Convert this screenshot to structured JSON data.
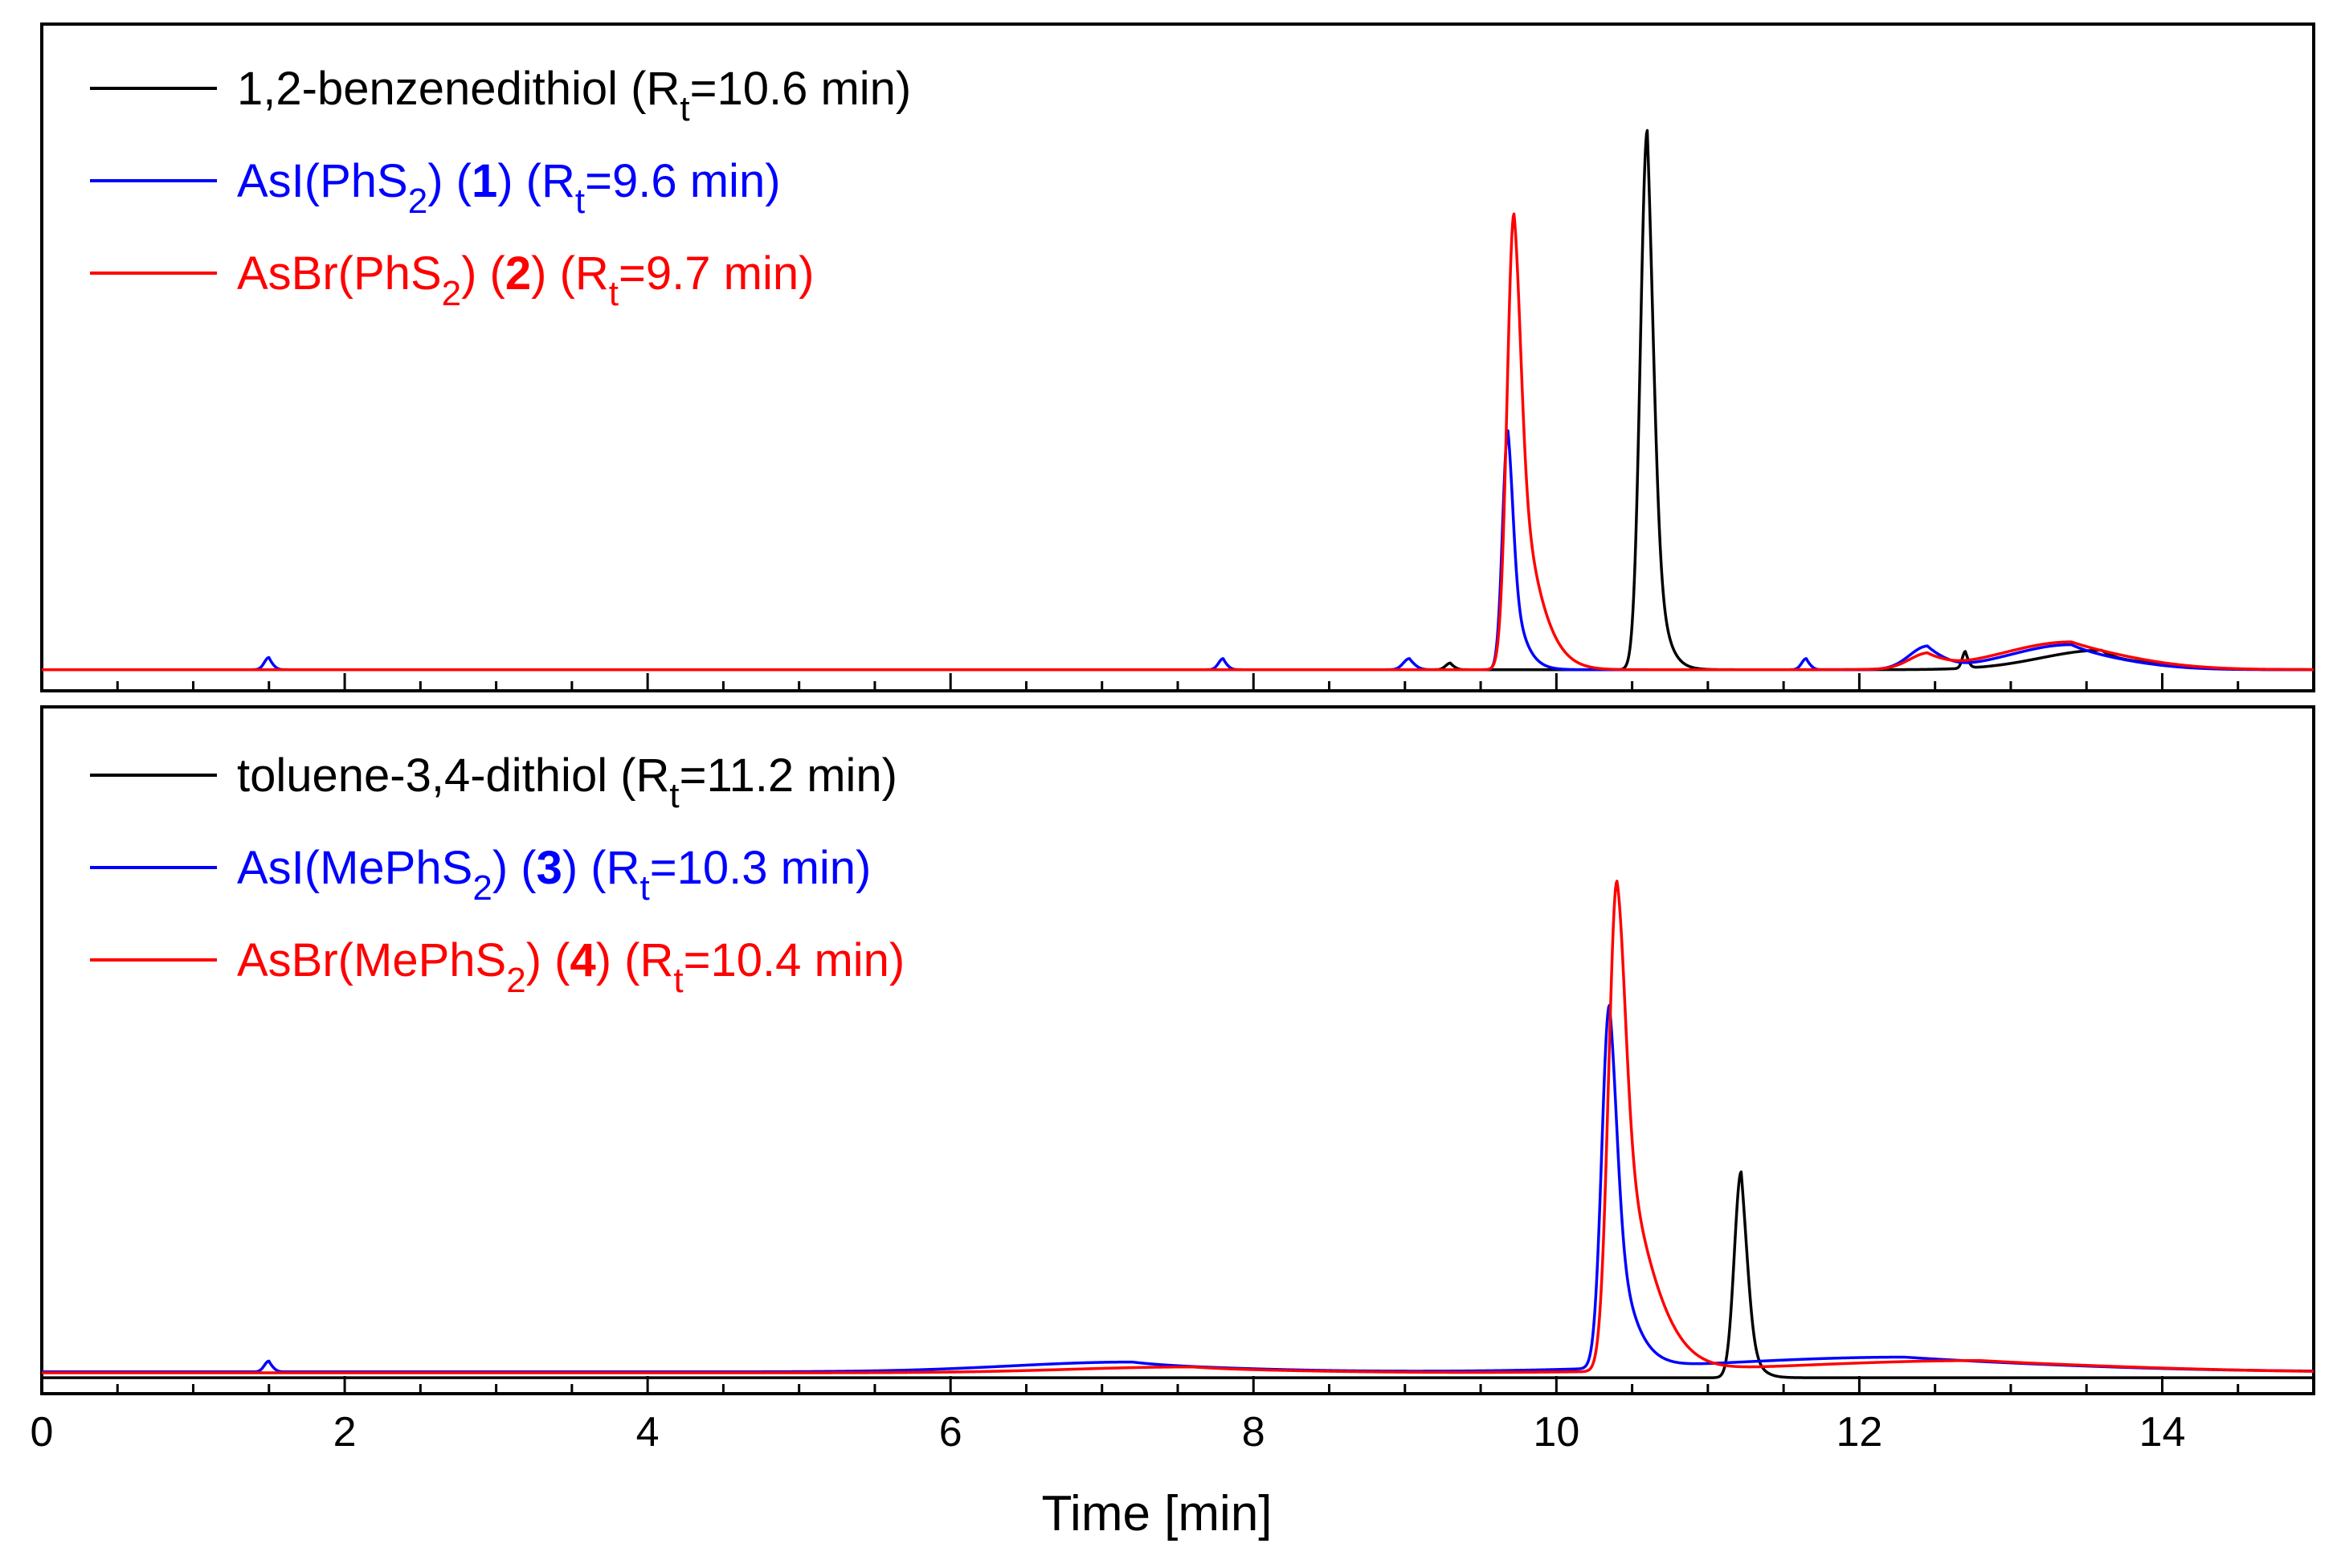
{
  "chart_data": {
    "type": "line",
    "description_axis": {
      "xlabel": "Time [min]",
      "xlim": [
        0,
        15
      ],
      "x_ticks": [
        0,
        2,
        4,
        6,
        8,
        10,
        12,
        14
      ],
      "x_minor_step": 0.5,
      "ylabel": ""
    },
    "colors": {
      "thiol": "#000000",
      "iodo": "#0000ff",
      "bromo": "#ff0000"
    },
    "panels": [
      {
        "id": "top",
        "legend": [
          {
            "color": "#000000",
            "pre": "1,2-benzenedithiol (R",
            "sub": "t",
            "post": "=10.6 min)"
          },
          {
            "color": "#0000ff",
            "pre": "AsI(PhS",
            "sub": "2",
            "mid": ") (",
            "bold": "1",
            "pre2": ") (R",
            "sub2": "t",
            "post": "=9.6 min)"
          },
          {
            "color": "#ff0000",
            "pre": "AsBr(PhS",
            "sub": "2",
            "mid": ") (",
            "bold": "2",
            "pre2": ") (R",
            "sub2": "t",
            "post": "=9.7 min)"
          }
        ],
        "series": [
          {
            "name": "1,2-benzenedithiol",
            "color": "#000000",
            "baseline": 0.012,
            "peaks": [
              {
                "t": 10.6,
                "h": 0.97,
                "w": 0.045,
                "tail": 0.07
              },
              {
                "t": 9.3,
                "h": 0.012,
                "w": 0.03,
                "tail": 0.02
              },
              {
                "t": 12.7,
                "h": 0.03,
                "w": 0.02,
                "tail": 0.02
              },
              {
                "t": 13.6,
                "h": 0.035,
                "w": 0.4,
                "tail": 0.1
              }
            ]
          },
          {
            "name": "AsI(PhS2) (1)",
            "color": "#0000ff",
            "baseline": 0.012,
            "peaks": [
              {
                "t": 1.5,
                "h": 0.022,
                "w": 0.03,
                "tail": 0.02
              },
              {
                "t": 7.8,
                "h": 0.02,
                "w": 0.03,
                "tail": 0.02
              },
              {
                "t": 9.03,
                "h": 0.02,
                "w": 0.04,
                "tail": 0.03
              },
              {
                "t": 9.68,
                "h": 0.43,
                "w": 0.035,
                "tail": 0.09
              },
              {
                "t": 11.65,
                "h": 0.02,
                "w": 0.03,
                "tail": 0.02
              },
              {
                "t": 12.45,
                "h": 0.04,
                "w": 0.12,
                "tail": 0.08
              },
              {
                "t": 13.4,
                "h": 0.045,
                "w": 0.4,
                "tail": 0.2
              }
            ]
          },
          {
            "name": "AsBr(PhS2) (2)",
            "color": "#ff0000",
            "baseline": 0.012,
            "peaks": [
              {
                "t": 9.72,
                "h": 0.82,
                "w": 0.045,
                "tail": 0.18
              },
              {
                "t": 12.45,
                "h": 0.025,
                "w": 0.12,
                "tail": 0.08
              },
              {
                "t": 13.4,
                "h": 0.05,
                "w": 0.45,
                "tail": 0.3
              }
            ]
          }
        ]
      },
      {
        "id": "bottom",
        "legend": [
          {
            "color": "#000000",
            "pre": "toluene-3,4-dithiol (R",
            "sub": "t",
            "post": "=11.2 min)"
          },
          {
            "color": "#0000ff",
            "pre": "AsI(MePhS",
            "sub": "2",
            "mid": ") (",
            "bold": "3",
            "pre2": ") (R",
            "sub2": "t",
            "post": "=10.3 min)"
          },
          {
            "color": "#ff0000",
            "pre": "AsBr(MePhS",
            "sub": "2",
            "mid": ") (",
            "bold": "4",
            "pre2": ") (R",
            "sub2": "t",
            "post": "=10.4 min)"
          }
        ],
        "series": [
          {
            "name": "toluene-3,4-dithiol",
            "color": "#000000",
            "baseline": 0.008,
            "peaks": [
              {
                "t": 11.22,
                "h": 0.42,
                "w": 0.045,
                "tail": 0.06
              }
            ]
          },
          {
            "name": "AsI(MePhS2) (3)",
            "color": "#0000ff",
            "baseline": 0.02,
            "peaks": [
              {
                "t": 1.5,
                "h": 0.022,
                "w": 0.03,
                "tail": 0.02
              },
              {
                "t": 7.2,
                "h": 0.02,
                "w": 0.8,
                "tail": 0.3
              },
              {
                "t": 10.35,
                "h": 0.74,
                "w": 0.05,
                "tail": 0.14
              },
              {
                "t": 12.3,
                "h": 0.03,
                "w": 1.2,
                "tail": 0.8
              }
            ]
          },
          {
            "name": "AsBr(MePhS2) (4)",
            "color": "#ff0000",
            "baseline": 0.018,
            "peaks": [
              {
                "t": 7.6,
                "h": 0.012,
                "w": 0.8,
                "tail": 0.3
              },
              {
                "t": 10.4,
                "h": 1.0,
                "w": 0.055,
                "tail": 0.32
              },
              {
                "t": 12.8,
                "h": 0.025,
                "w": 1.2,
                "tail": 0.8
              }
            ]
          }
        ]
      }
    ]
  }
}
